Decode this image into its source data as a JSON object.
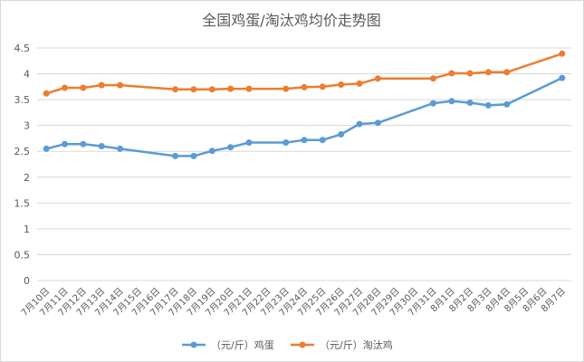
{
  "chart_data": {
    "type": "line",
    "title": "全国鸡蛋/淘汰鸡均价走势图",
    "xlabel": "",
    "ylabel": "",
    "ylim": [
      0,
      4.5
    ],
    "yticks": [
      "0",
      "0.5",
      "1",
      "1.5",
      "2",
      "2.5",
      "3",
      "3.5",
      "4",
      "4.5"
    ],
    "grid": true,
    "legend_position": "bottom",
    "categories": [
      "7月10日",
      "7月11日",
      "7月12日",
      "7月13日",
      "7月14日",
      "7月15日",
      "7月16日",
      "7月17日",
      "7月18日",
      "7月19日",
      "7月20日",
      "7月21日",
      "7月22日",
      "7月23日",
      "7月24日",
      "7月25日",
      "7月26日",
      "7月27日",
      "7月28日",
      "7月29日",
      "7月30日",
      "7月31日",
      "8月1日",
      "8月2日",
      "8月3日",
      "8月4日",
      "8月5日",
      "8月6日",
      "8月7日"
    ],
    "series": [
      {
        "name": "（元/斤）鸡蛋",
        "color": "#5b9bd5",
        "values": [
          2.55,
          2.64,
          2.64,
          2.6,
          2.55,
          null,
          null,
          2.41,
          2.41,
          2.51,
          2.58,
          2.67,
          null,
          2.67,
          2.72,
          2.72,
          2.83,
          3.03,
          3.05,
          null,
          null,
          3.43,
          3.47,
          3.44,
          3.39,
          3.41,
          null,
          null,
          3.92
        ]
      },
      {
        "name": "（元/斤）淘汰鸡",
        "color": "#ed7d31",
        "values": [
          3.62,
          3.73,
          3.73,
          3.78,
          3.78,
          null,
          null,
          3.7,
          3.7,
          3.7,
          3.71,
          3.71,
          null,
          3.71,
          3.74,
          3.75,
          3.79,
          3.81,
          3.91,
          null,
          null,
          3.91,
          4.01,
          4.01,
          4.03,
          4.03,
          null,
          null,
          4.39
        ]
      }
    ]
  }
}
